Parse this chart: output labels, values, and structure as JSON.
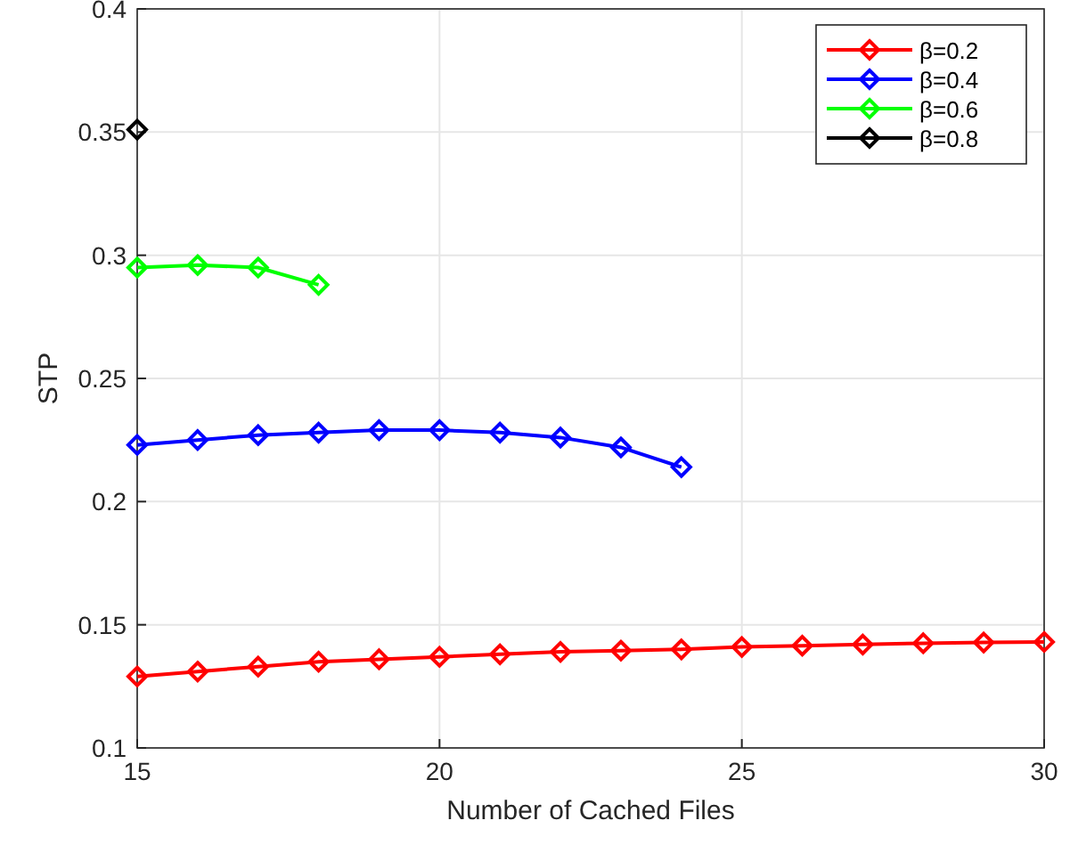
{
  "chart_data": {
    "type": "line",
    "xlabel": "Number of Cached Files",
    "ylabel": "STP",
    "xlim": [
      15,
      30
    ],
    "xticks": [
      15,
      20,
      25,
      30
    ],
    "ylim": [
      0.1,
      0.4
    ],
    "yticks": [
      0.1,
      0.15,
      0.2,
      0.25,
      0.3,
      0.35,
      0.4
    ],
    "grid": true,
    "legend": "top right",
    "marker": "diamond",
    "line_style": "solid",
    "series": [
      {
        "name": "β=0.2",
        "color": "#ff0000",
        "x": [
          15,
          16,
          17,
          18,
          19,
          20,
          21,
          22,
          23,
          24,
          25,
          26,
          27,
          28,
          29,
          30
        ],
        "values": [
          0.129,
          0.131,
          0.133,
          0.135,
          0.136,
          0.137,
          0.138,
          0.139,
          0.1395,
          0.14,
          0.141,
          0.1415,
          0.142,
          0.1425,
          0.1428,
          0.143
        ]
      },
      {
        "name": "β=0.4",
        "color": "#0000ff",
        "x": [
          15,
          16,
          17,
          18,
          19,
          20,
          21,
          22,
          23,
          24
        ],
        "values": [
          0.223,
          0.225,
          0.227,
          0.228,
          0.229,
          0.229,
          0.228,
          0.226,
          0.222,
          0.214
        ]
      },
      {
        "name": "β=0.6",
        "color": "#00ff00",
        "x": [
          15,
          16,
          17,
          18
        ],
        "values": [
          0.295,
          0.296,
          0.295,
          0.288
        ]
      },
      {
        "name": "β=0.8",
        "color": "#000000",
        "x": [
          15
        ],
        "values": [
          0.351
        ]
      }
    ]
  }
}
